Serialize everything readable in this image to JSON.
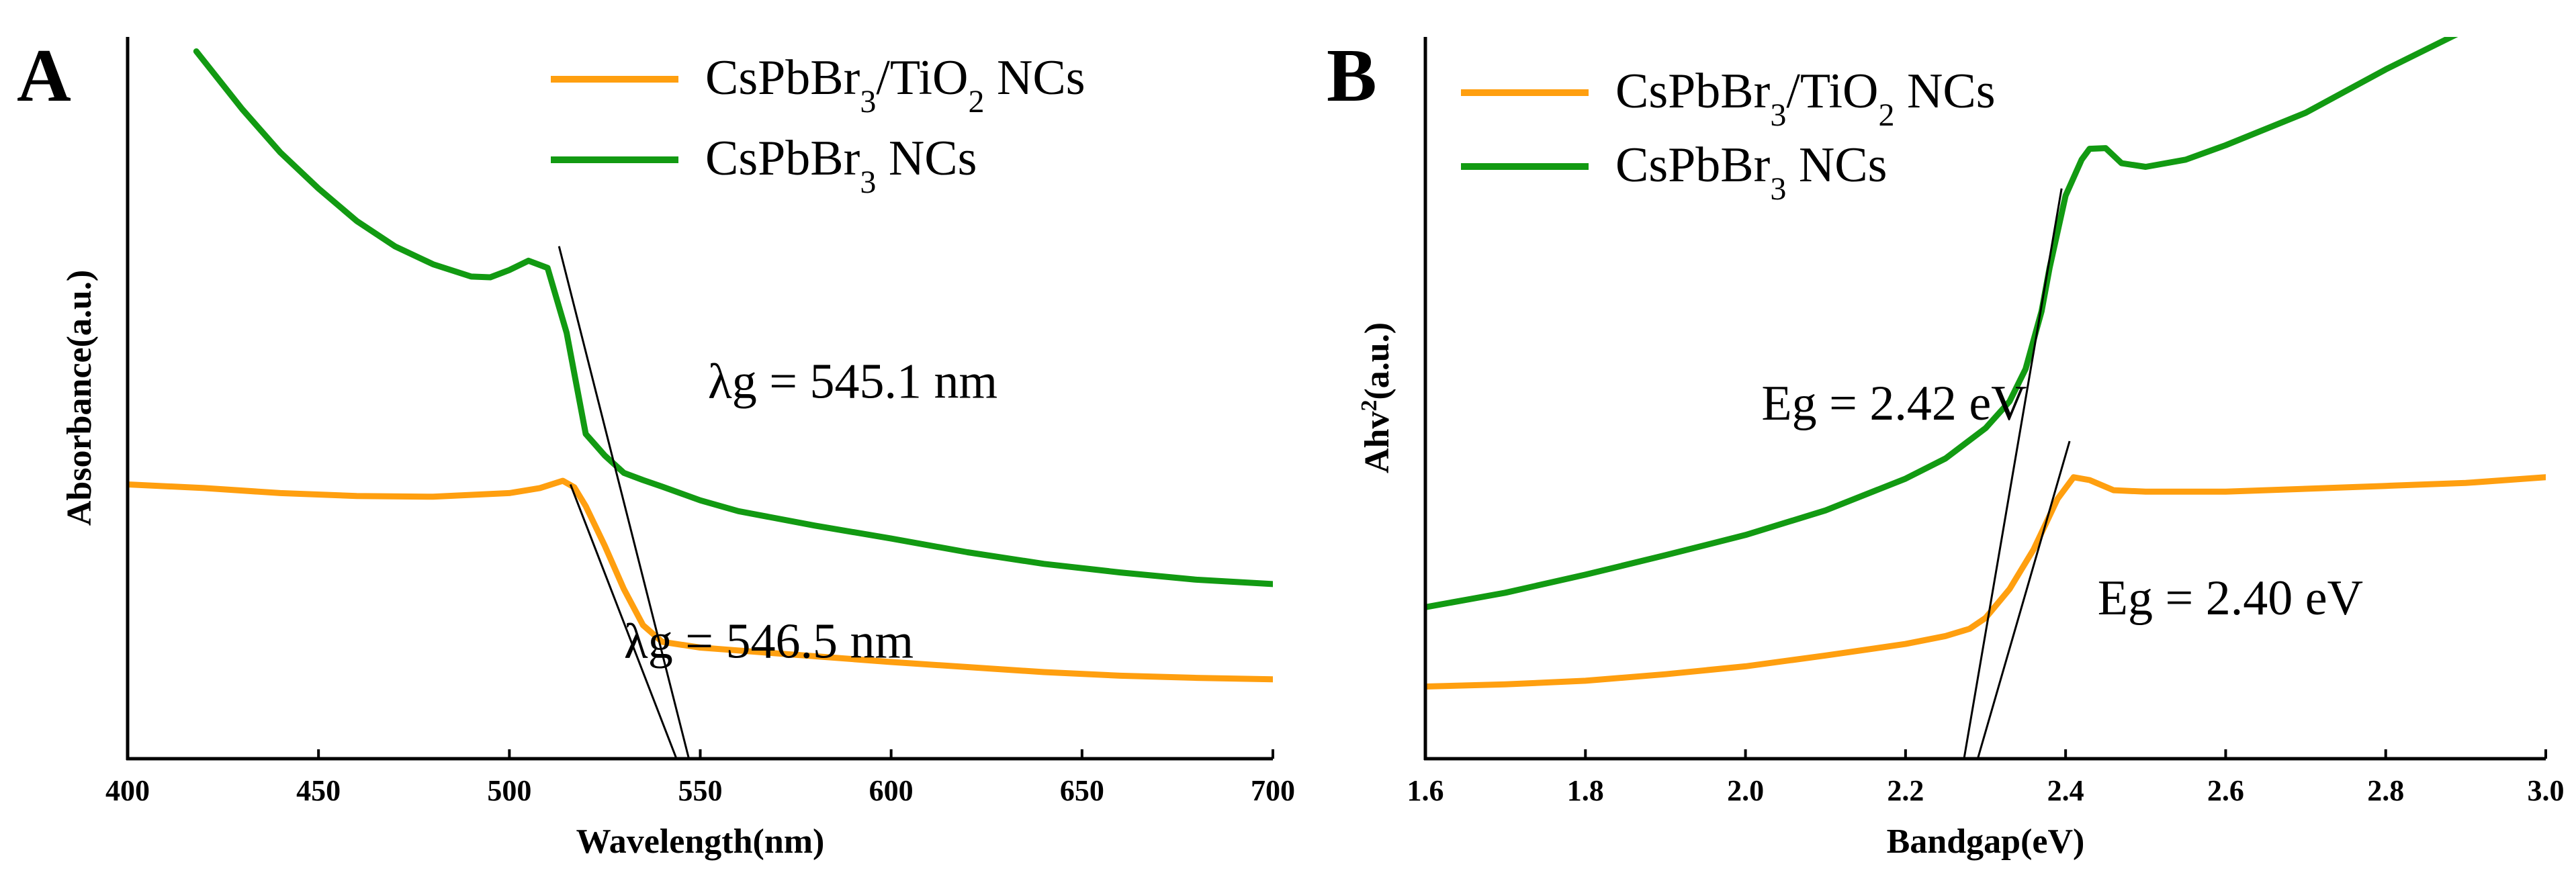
{
  "colors": {
    "orange": "#ff9f0f",
    "green": "#129a12",
    "axis": "#000000",
    "tangent": "#000000"
  },
  "chart_data": [
    {
      "type": "line",
      "panel_letter": "A",
      "xlabel": "Wavelength(nm)",
      "ylabel": "Absorbance(a.u.)",
      "xlim": [
        400,
        700
      ],
      "ylim": [
        0,
        100
      ],
      "xticks": [
        "400",
        "450",
        "500",
        "550",
        "600",
        "650",
        "700"
      ],
      "legend": {
        "position": "top-right",
        "entries": [
          {
            "name": "CsPbBr3/TiO2 NCs",
            "text": "CsPbBr",
            "sub": "3",
            "text2": "/TiO",
            "sub2": "2",
            "text3": " NCs",
            "color": "orange"
          },
          {
            "name": "CsPbBr3 NCs",
            "text": "CsPbBr",
            "sub": "3",
            "text2": " NCs",
            "color": "green"
          }
        ]
      },
      "series": [
        {
          "name": "CsPbBr3/TiO2 NCs",
          "color": "orange",
          "x": [
            400,
            420,
            440,
            460,
            480,
            500,
            508,
            514,
            517,
            520,
            525,
            530,
            535,
            540,
            550,
            560,
            580,
            600,
            620,
            640,
            660,
            680,
            700
          ],
          "y": [
            38,
            37.5,
            36.8,
            36.4,
            36.3,
            36.8,
            37.5,
            38.5,
            37.6,
            35,
            29.5,
            23.5,
            18.5,
            16.2,
            15.4,
            15.0,
            14.2,
            13.4,
            12.7,
            12.0,
            11.5,
            11.2,
            11.0
          ]
        },
        {
          "name": "CsPbBr3 NCs",
          "color": "green",
          "x": [
            418,
            430,
            440,
            450,
            460,
            470,
            480,
            490,
            495,
            500,
            505,
            510,
            515,
            520,
            525,
            530,
            535,
            540,
            550,
            560,
            580,
            600,
            620,
            640,
            660,
            680,
            700
          ],
          "y": [
            98,
            90,
            84,
            79,
            74.5,
            71,
            68.5,
            66.8,
            66.7,
            67.7,
            69,
            68,
            59,
            45,
            42,
            39.6,
            38.6,
            37.7,
            35.8,
            34.3,
            32.3,
            30.5,
            28.6,
            27.0,
            25.8,
            24.8,
            24.2
          ]
        }
      ],
      "tangents": [
        {
          "x": [
            513,
            547.5
          ],
          "y": [
            71,
            -1
          ]
        },
        {
          "x": [
            516,
            544.5
          ],
          "y": [
            38,
            -1
          ]
        }
      ],
      "annotations": [
        {
          "text": "λg = 545.1 nm",
          "x": 552,
          "y": 50
        },
        {
          "text": "λg = 546.5 nm",
          "x": 530,
          "y": 14
        }
      ]
    },
    {
      "type": "line",
      "panel_letter": "B",
      "xlabel": "Bandgap(eV)",
      "ylabel": "Ahv²(a.u.)",
      "ylabel_main": "Ahv",
      "ylabel_sup": "2",
      "ylabel_tail": "(a.u.)",
      "xlim": [
        1.6,
        3.0
      ],
      "ylim": [
        0,
        100
      ],
      "xticks": [
        "1.6",
        "1.8",
        "2.0",
        "2.2",
        "2.4",
        "2.6",
        "2.8",
        "3.0"
      ],
      "legend": {
        "position": "top-left",
        "entries": [
          {
            "name": "CsPbBr3/TiO2 NCs",
            "text": "CsPbBr",
            "sub": "3",
            "text2": "/TiO",
            "sub2": "2",
            "text3": " NCs",
            "color": "orange"
          },
          {
            "name": "CsPbBr3 NCs",
            "text": "CsPbBr",
            "sub": "3",
            "text2": " NCs",
            "color": "green"
          }
        ]
      },
      "series": [
        {
          "name": "CsPbBr3/TiO2 NCs",
          "color": "orange",
          "x": [
            1.6,
            1.7,
            1.8,
            1.9,
            2.0,
            2.1,
            2.2,
            2.25,
            2.28,
            2.3,
            2.33,
            2.36,
            2.39,
            2.41,
            2.43,
            2.46,
            2.5,
            2.6,
            2.7,
            2.8,
            2.9,
            3.0
          ],
          "y": [
            10,
            10.3,
            10.8,
            11.7,
            12.8,
            14.3,
            15.9,
            17.0,
            18.0,
            19.5,
            23.5,
            29,
            36,
            39,
            38.6,
            37.2,
            37.0,
            37.0,
            37.4,
            37.8,
            38.2,
            39.0
          ]
        },
        {
          "name": "CsPbBr3 NCs",
          "color": "green",
          "x": [
            1.6,
            1.7,
            1.8,
            1.9,
            2.0,
            2.1,
            2.2,
            2.25,
            2.3,
            2.33,
            2.35,
            2.37,
            2.38,
            2.4,
            2.42,
            2.43,
            2.45,
            2.47,
            2.5,
            2.55,
            2.6,
            2.7,
            2.8,
            2.9
          ],
          "y": [
            21,
            23,
            25.5,
            28.2,
            31,
            34.4,
            38.8,
            41.6,
            45.8,
            49.5,
            54,
            62,
            68,
            78,
            83,
            84.5,
            84.6,
            82.5,
            82.0,
            83,
            85,
            89.5,
            95.5,
            101
          ]
        }
      ],
      "tangents": [
        {
          "x": [
            2.285,
            2.405
          ],
          "y": [
            -2,
            44
          ]
        },
        {
          "x": [
            2.27,
            2.395
          ],
          "y": [
            -2,
            79
          ]
        }
      ],
      "annotations": [
        {
          "text": "Eg = 2.42 eV",
          "x": 2.02,
          "y": 47
        },
        {
          "text": "Eg = 2.40 eV",
          "x": 2.44,
          "y": 20
        }
      ]
    }
  ]
}
